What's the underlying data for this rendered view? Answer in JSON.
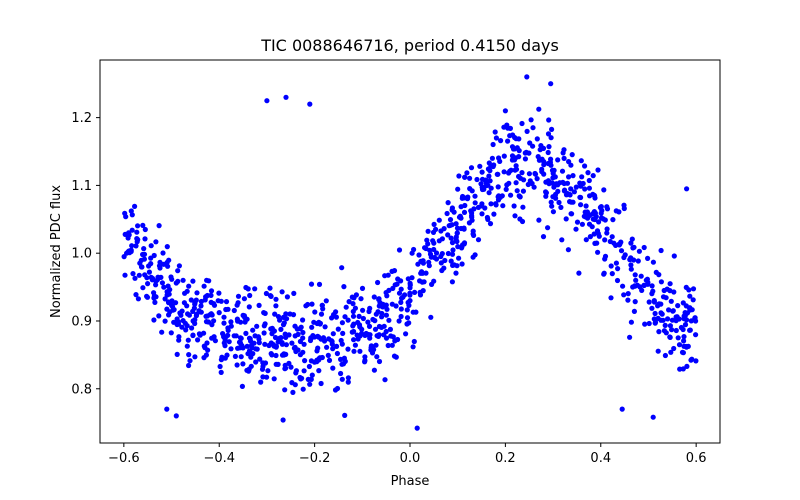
{
  "chart_data": {
    "type": "scatter",
    "title": "TIC 0088646716, period 0.4150 days",
    "xlabel": "Phase",
    "ylabel": "Normalized PDC flux",
    "xlim": [
      -0.65,
      0.65
    ],
    "ylim": [
      0.72,
      1.285
    ],
    "xticks": [
      -0.6,
      -0.4,
      -0.2,
      0.0,
      0.2,
      0.4,
      0.6
    ],
    "xtick_labels": [
      "−0.6",
      "−0.4",
      "−0.2",
      "0.0",
      "0.2",
      "0.4",
      "0.6"
    ],
    "yticks": [
      0.8,
      0.9,
      1.0,
      1.1,
      1.2
    ],
    "ytick_labels": [
      "0.8",
      "0.9",
      "1.0",
      "1.1",
      "1.2"
    ],
    "grid": false,
    "marker_color": "#0000ff",
    "phase_range": [
      -0.6,
      0.6
    ],
    "model": {
      "mean": 0.97,
      "fundamental_amplitude": 0.13,
      "fundamental_peak_phase": 0.25,
      "harmonic_amplitude": 0.03,
      "scatter": 0.035,
      "n_points": 1150
    },
    "notable_points": [
      {
        "x": -0.26,
        "y": 1.23
      },
      {
        "x": -0.3,
        "y": 1.225
      },
      {
        "x": -0.21,
        "y": 1.22
      },
      {
        "x": 0.245,
        "y": 1.26
      },
      {
        "x": 0.295,
        "y": 1.25
      },
      {
        "x": 0.2,
        "y": 1.21
      },
      {
        "x": 0.58,
        "y": 1.095
      },
      {
        "x": -0.59,
        "y": 1.03
      },
      {
        "x": -0.555,
        "y": 1.035
      },
      {
        "x": -0.49,
        "y": 0.76
      },
      {
        "x": 0.015,
        "y": 0.742
      },
      {
        "x": 0.51,
        "y": 0.758
      },
      {
        "x": 0.445,
        "y": 0.77
      },
      {
        "x": -0.51,
        "y": 0.77
      },
      {
        "x": 0.0,
        "y": 0.93
      }
    ]
  }
}
